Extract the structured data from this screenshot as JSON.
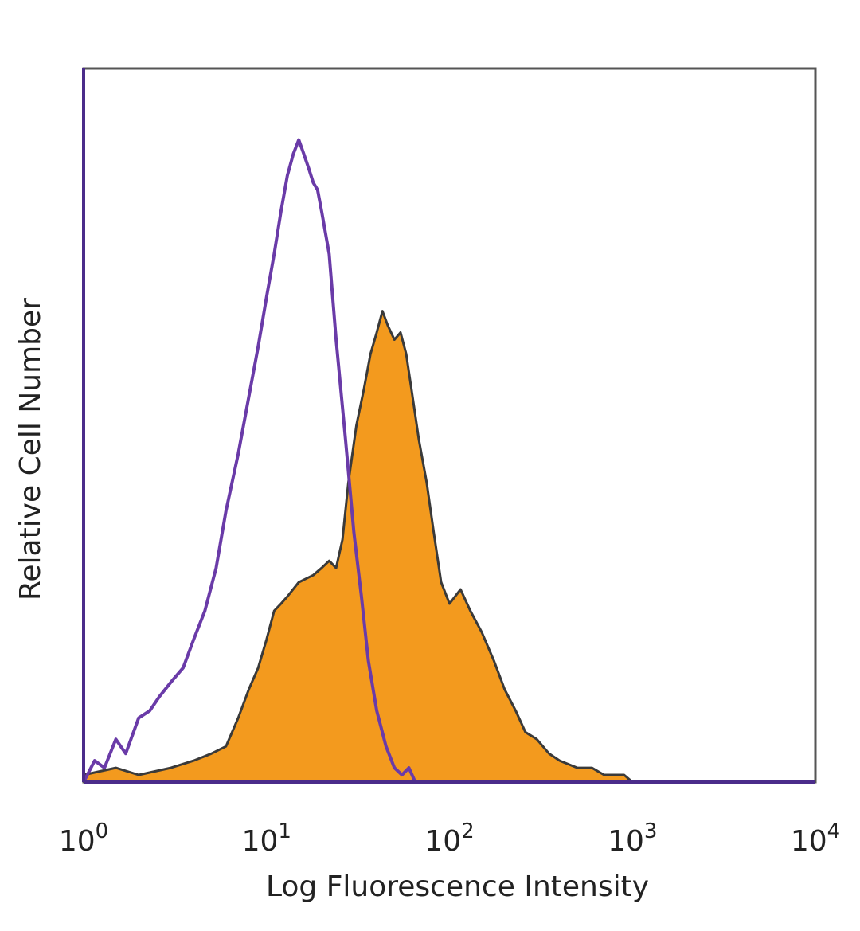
{
  "chart_data": {
    "type": "area",
    "xscale": "log",
    "xlim": [
      1,
      10000
    ],
    "ylim": [
      0,
      1.0
    ],
    "grid": false,
    "legend": "none",
    "xlabel": "Log Fluorescence Intensity",
    "ylabel": "Relative Cell Number",
    "xticks": [
      {
        "value": 1,
        "base": "10",
        "exp": "0"
      },
      {
        "value": 10,
        "base": "10",
        "exp": "1"
      },
      {
        "value": 100,
        "base": "10",
        "exp": "2"
      },
      {
        "value": 1000,
        "base": "10",
        "exp": "3"
      },
      {
        "value": 10000,
        "base": "10",
        "exp": "4"
      }
    ],
    "series": [
      {
        "style": "line",
        "color": "#6A3BA8",
        "points": [
          [
            1.0,
            0.0
          ],
          [
            1.15,
            0.03
          ],
          [
            1.3,
            0.02
          ],
          [
            1.5,
            0.06
          ],
          [
            1.7,
            0.04
          ],
          [
            2.0,
            0.09
          ],
          [
            2.3,
            0.1
          ],
          [
            2.6,
            0.12
          ],
          [
            3.0,
            0.14
          ],
          [
            3.5,
            0.16
          ],
          [
            4.0,
            0.2
          ],
          [
            4.6,
            0.24
          ],
          [
            5.3,
            0.3
          ],
          [
            6.0,
            0.38
          ],
          [
            7.0,
            0.46
          ],
          [
            8.0,
            0.54
          ],
          [
            9.0,
            0.61
          ],
          [
            10.0,
            0.68
          ],
          [
            11.0,
            0.74
          ],
          [
            12.0,
            0.8
          ],
          [
            13.0,
            0.85
          ],
          [
            14.0,
            0.88
          ],
          [
            15.0,
            0.9
          ],
          [
            16.0,
            0.88
          ],
          [
            17.0,
            0.86
          ],
          [
            18.0,
            0.84
          ],
          [
            19.0,
            0.83
          ],
          [
            20.0,
            0.8
          ],
          [
            22.0,
            0.74
          ],
          [
            24.0,
            0.62
          ],
          [
            27.0,
            0.48
          ],
          [
            30.0,
            0.35
          ],
          [
            33.0,
            0.26
          ],
          [
            36.0,
            0.17
          ],
          [
            40.0,
            0.1
          ],
          [
            45.0,
            0.05
          ],
          [
            50.0,
            0.02
          ],
          [
            55.0,
            0.01
          ],
          [
            60.0,
            0.02
          ],
          [
            65.0,
            0.0
          ],
          [
            80.0,
            0.0
          ],
          [
            10000.0,
            0.0
          ]
        ]
      },
      {
        "style": "filled",
        "color": "#F39A1E",
        "points": [
          [
            1.0,
            0.01
          ],
          [
            1.5,
            0.02
          ],
          [
            2.0,
            0.01
          ],
          [
            3.0,
            0.02
          ],
          [
            4.0,
            0.03
          ],
          [
            5.0,
            0.04
          ],
          [
            6.0,
            0.05
          ],
          [
            7.0,
            0.09
          ],
          [
            8.0,
            0.13
          ],
          [
            9.0,
            0.16
          ],
          [
            10.0,
            0.2
          ],
          [
            11.0,
            0.24
          ],
          [
            12.0,
            0.25
          ],
          [
            13.0,
            0.26
          ],
          [
            15.0,
            0.28
          ],
          [
            18.0,
            0.29
          ],
          [
            20.0,
            0.3
          ],
          [
            22.0,
            0.31
          ],
          [
            24.0,
            0.3
          ],
          [
            26.0,
            0.34
          ],
          [
            28.0,
            0.42
          ],
          [
            31.0,
            0.5
          ],
          [
            34.0,
            0.55
          ],
          [
            37.0,
            0.6
          ],
          [
            40.0,
            0.63
          ],
          [
            43.0,
            0.66
          ],
          [
            46.0,
            0.64
          ],
          [
            50.0,
            0.62
          ],
          [
            54.0,
            0.63
          ],
          [
            58.0,
            0.6
          ],
          [
            62.0,
            0.55
          ],
          [
            68.0,
            0.48
          ],
          [
            75.0,
            0.42
          ],
          [
            82.0,
            0.35
          ],
          [
            90.0,
            0.28
          ],
          [
            100.0,
            0.25
          ],
          [
            115.0,
            0.27
          ],
          [
            130.0,
            0.24
          ],
          [
            150.0,
            0.21
          ],
          [
            175.0,
            0.17
          ],
          [
            200.0,
            0.13
          ],
          [
            230.0,
            0.1
          ],
          [
            260.0,
            0.07
          ],
          [
            300.0,
            0.06
          ],
          [
            350.0,
            0.04
          ],
          [
            400.0,
            0.03
          ],
          [
            500.0,
            0.02
          ],
          [
            600.0,
            0.02
          ],
          [
            700.0,
            0.01
          ],
          [
            900.0,
            0.01
          ],
          [
            1000.0,
            0.0
          ]
        ]
      }
    ]
  }
}
